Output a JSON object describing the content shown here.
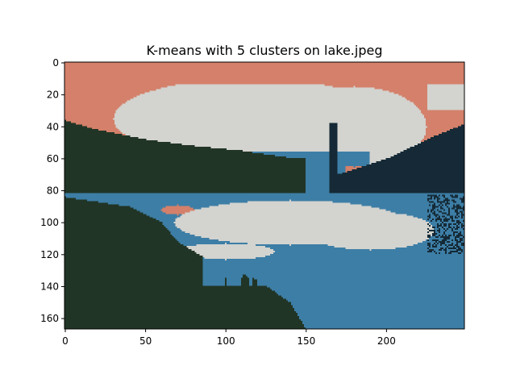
{
  "chart_data": {
    "type": "heatmap",
    "title": "K-means with 5 clusters on lake.jpeg",
    "xlabel": "",
    "ylabel": "",
    "xlim": [
      0,
      249
    ],
    "ylim": [
      167,
      0
    ],
    "x_ticks": [
      0,
      50,
      100,
      150,
      200
    ],
    "y_ticks": [
      0,
      20,
      40,
      60,
      80,
      100,
      120,
      140,
      160
    ],
    "grid": false,
    "image": {
      "width": 249,
      "height": 167
    },
    "clusters": [
      {
        "id": 0,
        "color": "#d4806a"
      },
      {
        "id": 1,
        "color": "#d3d3cf"
      },
      {
        "id": 2,
        "color": "#3d7ea6"
      },
      {
        "id": 3,
        "color": "#213526"
      },
      {
        "id": 4,
        "color": "#152a36"
      }
    ]
  }
}
